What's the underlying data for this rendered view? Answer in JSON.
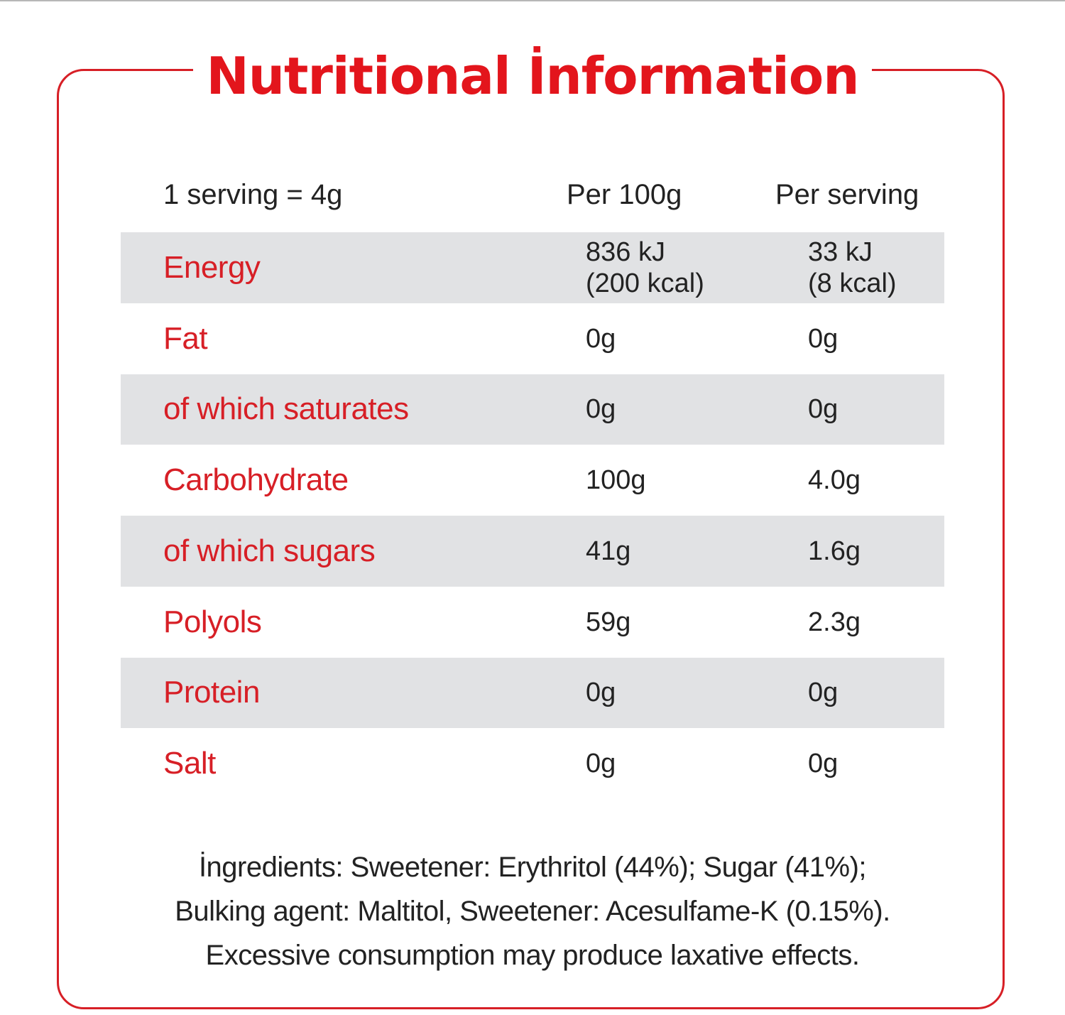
{
  "title": "Nutritional İnformation",
  "header": {
    "serving_size": "1 serving = 4g",
    "col_per_100g": "Per 100g",
    "col_per_serving": "Per serving"
  },
  "rows": [
    {
      "name": "Energy",
      "per_100g": "836 kJ\n(200 kcal)",
      "per_serving": "33 kJ\n(8 kcal)"
    },
    {
      "name": "Fat",
      "per_100g": "0g",
      "per_serving": "0g"
    },
    {
      "name": "of which saturates",
      "per_100g": "0g",
      "per_serving": "0g"
    },
    {
      "name": "Carbohydrate",
      "per_100g": "100g",
      "per_serving": "4.0g"
    },
    {
      "name": "of which sugars",
      "per_100g": "41g",
      "per_serving": "1.6g"
    },
    {
      "name": "Polyols",
      "per_100g": "59g",
      "per_serving": "2.3g"
    },
    {
      "name": "Protein",
      "per_100g": "0g",
      "per_serving": "0g"
    },
    {
      "name": "Salt",
      "per_100g": "0g",
      "per_serving": "0g"
    }
  ],
  "ingredients": {
    "line1": "İngredients: Sweetener: Erythritol (44%); Sugar (41%);",
    "line2": "Bulking agent: Maltitol, Sweetener: Acesulfame-K (0.15%).",
    "line3": "Excessive consumption may produce laxative effects."
  },
  "colors": {
    "accent_red": "#d71f26",
    "row_shade": "#e1e2e4",
    "text": "#222222"
  }
}
